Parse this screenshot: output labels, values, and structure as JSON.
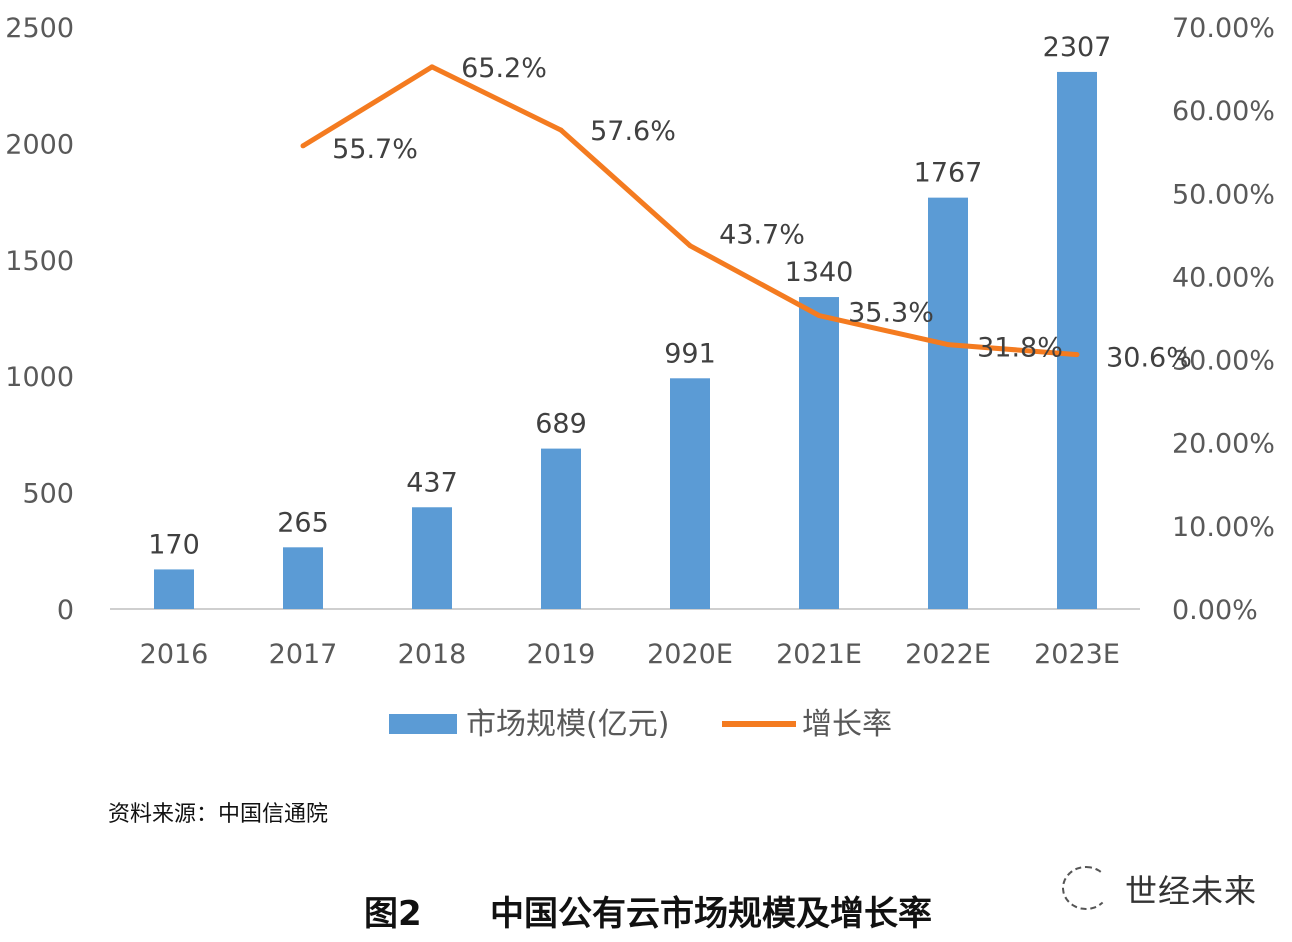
{
  "chart_data": {
    "type": "bar+line",
    "title": "中国公有云市场规模及增长率",
    "figure_label": "图2",
    "categories": [
      "2016",
      "2017",
      "2018",
      "2019",
      "2020E",
      "2021E",
      "2022E",
      "2023E"
    ],
    "series": [
      {
        "name": "市场规模(亿元)",
        "type": "bar",
        "axis": "left",
        "color": "#5b9bd5",
        "values": [
          170,
          265,
          437,
          689,
          991,
          1340,
          1767,
          2307
        ],
        "labels": [
          "170",
          "265",
          "437",
          "689",
          "991",
          "1340",
          "1767",
          "2307"
        ]
      },
      {
        "name": "增长率",
        "type": "line",
        "axis": "right",
        "color": "#f47b20",
        "values": [
          null,
          55.7,
          65.2,
          57.6,
          43.7,
          35.3,
          31.8,
          30.6
        ],
        "labels": [
          "",
          "55.7%",
          "65.2%",
          "57.6%",
          "43.7%",
          "35.3%",
          "31.8%",
          "30.6%"
        ]
      }
    ],
    "left_axis": {
      "ylim": [
        0,
        2500
      ],
      "ticks": [
        "0",
        "500",
        "1000",
        "1500",
        "2000",
        "2500"
      ]
    },
    "right_axis": {
      "ylim": [
        0,
        70
      ],
      "ticks": [
        "0.00%",
        "10.00%",
        "20.00%",
        "30.00%",
        "40.00%",
        "50.00%",
        "60.00%",
        "70.00%"
      ]
    },
    "grid": false,
    "legend": "bottom"
  },
  "source": "资料来源：中国信通院",
  "watermark": "世经未来"
}
